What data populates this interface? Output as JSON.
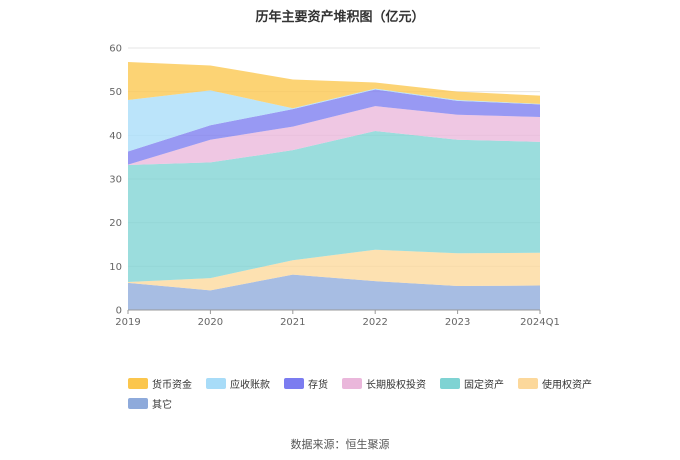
{
  "chart_data": {
    "type": "area",
    "stacked": true,
    "title": "历年主要资产堆积图（亿元）",
    "categories": [
      "2019",
      "2020",
      "2021",
      "2022",
      "2023",
      "2024Q1"
    ],
    "ylim": [
      0,
      60
    ],
    "yticks": [
      0,
      10,
      20,
      30,
      40,
      50,
      60
    ],
    "grid": true,
    "legend_position": "bottom",
    "series": [
      {
        "name": "其它",
        "color": "#8eaadb",
        "values": [
          6.2,
          4.5,
          8.1,
          6.6,
          5.5,
          5.6
        ]
      },
      {
        "name": "使用权资产",
        "color": "#fcd89b",
        "values": [
          0.2,
          2.8,
          3.3,
          7.2,
          7.5,
          7.5
        ]
      },
      {
        "name": "固定资产",
        "color": "#7fd3d3",
        "values": [
          26.8,
          26.5,
          25.2,
          27.2,
          26.0,
          25.4
        ]
      },
      {
        "name": "长期股权投资",
        "color": "#eab7db",
        "values": [
          0.1,
          5.2,
          5.4,
          5.7,
          5.7,
          5.7
        ]
      },
      {
        "name": "存货",
        "color": "#7b7cf0",
        "values": [
          3.0,
          3.3,
          4.0,
          3.8,
          3.2,
          2.9
        ]
      },
      {
        "name": "应收账款",
        "color": "#a8dcf8",
        "values": [
          11.8,
          8.0,
          0.2,
          0.2,
          0.2,
          0.1
        ]
      },
      {
        "name": "货币资金",
        "color": "#fbc64d",
        "values": [
          8.7,
          5.7,
          6.6,
          1.4,
          1.9,
          1.9
        ]
      }
    ],
    "legend_order": [
      "货币资金",
      "应收账款",
      "存货",
      "长期股权投资",
      "固定资产",
      "使用权资产",
      "其它"
    ],
    "legend_colors": [
      "#fbc64d",
      "#a8dcf8",
      "#7b7cf0",
      "#eab7db",
      "#7fd3d3",
      "#fcd89b",
      "#8eaadb"
    ]
  },
  "source": "数据来源：恒生聚源"
}
